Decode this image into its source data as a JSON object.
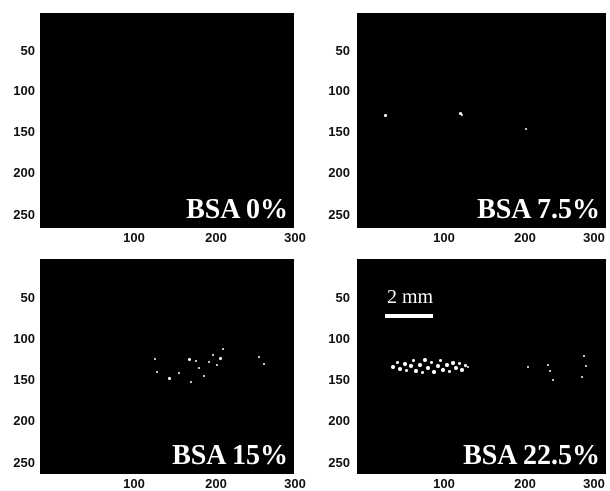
{
  "panels": [
    {
      "label": "BSA 0%"
    },
    {
      "label": "BSA 7.5%"
    },
    {
      "label": "BSA 15%"
    },
    {
      "label": "BSA 22.5%"
    }
  ],
  "y_ticks": [
    "50",
    "100",
    "150",
    "200",
    "250"
  ],
  "x_ticks": [
    "100",
    "200",
    "300"
  ],
  "scale_bar": {
    "text": "2 mm"
  }
}
